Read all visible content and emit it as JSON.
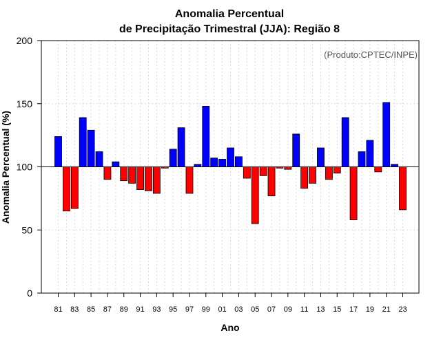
{
  "chart_data": {
    "type": "bar",
    "title_line1": "Anomalia Percentual",
    "title_line2": "de Precipitação Trimestral (JJA): Região 8",
    "xlabel": "Ano",
    "ylabel": "Anomalia Percentual (%)",
    "annotation": "(Produto:CPTEC/INPE)",
    "ylim": [
      0,
      200
    ],
    "yticks": [
      "0",
      "50",
      "100",
      "150",
      "200"
    ],
    "baseline": 100,
    "categories": [
      "81",
      "82",
      "83",
      "84",
      "85",
      "86",
      "87",
      "88",
      "89",
      "90",
      "91",
      "92",
      "93",
      "94",
      "95",
      "96",
      "97",
      "98",
      "99",
      "00",
      "01",
      "02",
      "03",
      "04",
      "05",
      "06",
      "07",
      "08",
      "09",
      "10",
      "11",
      "12",
      "13",
      "14",
      "15",
      "16",
      "17",
      "18",
      "19",
      "20",
      "21",
      "22",
      "23"
    ],
    "xtick_labels": [
      "81",
      "83",
      "85",
      "87",
      "89",
      "91",
      "93",
      "95",
      "97",
      "99",
      "01",
      "03",
      "05",
      "07",
      "09",
      "11",
      "13",
      "15",
      "17",
      "19",
      "21",
      "23"
    ],
    "values": [
      124,
      65,
      67,
      139,
      129,
      112,
      90,
      104,
      89,
      87,
      82,
      81,
      79,
      99,
      114,
      131,
      79,
      102,
      148,
      107,
      106,
      115,
      108,
      91,
      55,
      93,
      77,
      99,
      98,
      126,
      83,
      87,
      115,
      90,
      95,
      139,
      58,
      112,
      121,
      96,
      151,
      102,
      66
    ],
    "colors": {
      "above": "#0000ff",
      "below": "#ff0000",
      "grid": "#d9d9d9",
      "axis": "#000000"
    }
  }
}
